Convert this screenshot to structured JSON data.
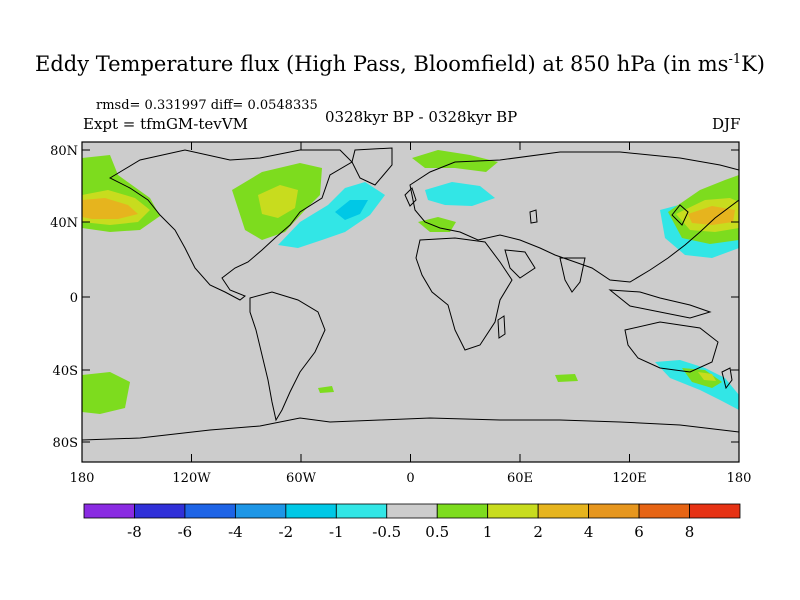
{
  "header": {
    "title": "Eddy Temperature flux (High Pass, Bloomfield) at 850 hPa (in ms",
    "title_sup": "-1",
    "title_tail": "K)",
    "stats": "rmsd= 0.331997 diff= 0.0548335",
    "experiment": "Expt = tfmGM-tevVM",
    "period": "0328kyr BP - 0328kyr BP",
    "season": "DJF"
  },
  "map": {
    "background_color": "#cccccc",
    "lat_ticks": [
      "80N",
      "40N",
      "0",
      "40S",
      "80S"
    ],
    "lon_ticks": [
      "180",
      "120W",
      "60W",
      "0",
      "60E",
      "120E",
      "180"
    ]
  },
  "colorbar": {
    "colors": [
      "#8a2be2",
      "#3030d8",
      "#1e64e6",
      "#1e96e6",
      "#00c8e6",
      "#32e6e6",
      "#cccccc",
      "#7ddc1e",
      "#c8dc1e",
      "#e6b41e",
      "#e6961e",
      "#e66414",
      "#e63214"
    ],
    "labels": [
      "-8",
      "-6",
      "-4",
      "-2",
      "-1",
      "-0.5",
      "0.5",
      "1",
      "2",
      "4",
      "6",
      "8"
    ]
  }
}
